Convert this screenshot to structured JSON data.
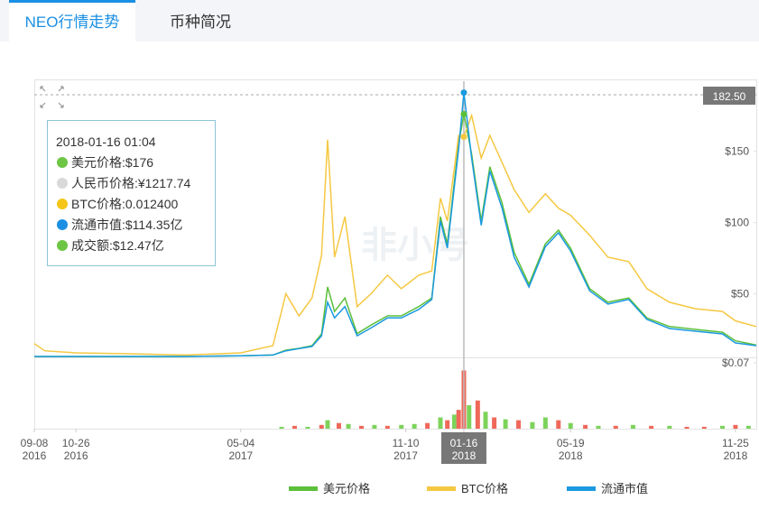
{
  "tabs": [
    "NEO行情走势",
    "币种简况"
  ],
  "chart_data": {
    "type": "line",
    "watermark": "非小号",
    "x": [
      "2016-09-08",
      "2016-09-20",
      "2016-10-26",
      "2016-12-15",
      "2017-03-01",
      "2017-05-04",
      "2017-06-10",
      "2017-06-25",
      "2017-07-10",
      "2017-07-25",
      "2017-08-05",
      "2017-08-12",
      "2017-08-20",
      "2017-09-01",
      "2017-09-15",
      "2017-10-01",
      "2017-10-20",
      "2017-11-05",
      "2017-11-25",
      "2017-12-10",
      "2017-12-20",
      "2017-12-28",
      "2018-01-10",
      "2018-01-16",
      "2018-01-25",
      "2018-02-05",
      "2018-02-15",
      "2018-03-01",
      "2018-03-15",
      "2018-04-01",
      "2018-04-20",
      "2018-05-05",
      "2018-05-19",
      "2018-06-10",
      "2018-07-01",
      "2018-07-25",
      "2018-08-15",
      "2018-09-10",
      "2018-10-10",
      "2018-11-10",
      "2018-11-25",
      "2018-12-19"
    ],
    "series": [
      {
        "name": "美元价格",
        "color": "#5cbf3a",
        "values": [
          6,
          6,
          6,
          6,
          6,
          6.5,
          7,
          10.4,
          11.7,
          13.6,
          21.8,
          54.7,
          37.6,
          47,
          22,
          28,
          34.5,
          34.5,
          41,
          47,
          104,
          85,
          155,
          176,
          148,
          101,
          139,
          113.6,
          79,
          56.6,
          85,
          94.6,
          82,
          53.5,
          44,
          47,
          33,
          27,
          25,
          23,
          17,
          14
        ]
      },
      {
        "name": "BTC价格",
        "color": "#f5c842",
        "values": [
          15,
          10,
          8.5,
          8,
          7,
          8.5,
          13.6,
          50,
          34.5,
          47,
          77,
          158,
          75.6,
          104,
          41,
          50,
          63,
          53.5,
          63,
          66,
          117,
          101,
          161,
          160,
          175,
          145,
          161,
          142,
          123,
          107,
          120,
          110,
          105,
          91,
          75.6,
          72.5,
          53.5,
          44,
          39.5,
          37.6,
          31,
          27
        ]
      },
      {
        "name": "流通市值",
        "color": "#1a9ae0",
        "values": [
          6,
          6,
          6,
          6,
          6,
          6.5,
          7,
          10,
          11.5,
          13,
          20.5,
          44,
          33,
          41,
          20.5,
          26,
          33,
          33,
          39,
          46,
          101,
          82,
          151.6,
          191,
          145,
          98,
          136,
          110,
          75.6,
          54.7,
          83,
          92.7,
          80,
          52,
          42.7,
          46,
          32,
          25.6,
          23.7,
          21.8,
          15.5,
          13.6
        ]
      }
    ],
    "xlim": [
      "2016-09-08",
      "2018-12-19"
    ],
    "xticks": [
      {
        "value": "2016-09-08",
        "label": [
          "09-08",
          "2016"
        ]
      },
      {
        "value": "2016-10-26",
        "label": [
          "10-26",
          "2016"
        ]
      },
      {
        "value": "2017-05-04",
        "label": [
          "05-04",
          "2017"
        ]
      },
      {
        "value": "2017-11-10",
        "label": [
          "11-10",
          "2017"
        ]
      },
      {
        "value": "2018-01-16",
        "label": [
          "01-16",
          "2018"
        ]
      },
      {
        "value": "2018-05-19",
        "label": [
          "05-19",
          "2018"
        ]
      },
      {
        "value": "2018-11-25",
        "label": [
          "11-25",
          "2018"
        ]
      }
    ],
    "ylim": [
      6,
      199
    ],
    "yticks": [
      {
        "value": 50,
        "label": "$50"
      },
      {
        "value": 100,
        "label": "$100"
      },
      {
        "value": 150,
        "label": "$150"
      }
    ],
    "grid": false,
    "crosshair": {
      "x": "2018-01-16",
      "value_label": "182.50"
    },
    "tooltip": {
      "time": "2018-01-16 01:04",
      "items": [
        {
          "label": "美元价格:$176",
          "color": "#6cc644"
        },
        {
          "label": "人民币价格:¥1217.74",
          "color": "#d9d9d9"
        },
        {
          "label": "BTC价格:0.012400",
          "color": "#f5c518"
        },
        {
          "label": "流通市值:$114.35亿",
          "color": "#1a8fe3"
        },
        {
          "label": "成交额:$12.47亿",
          "color": "#6cc644"
        }
      ]
    },
    "volume": {
      "x": [
        "2017-06-20",
        "2017-07-05",
        "2017-07-20",
        "2017-08-05",
        "2017-08-12",
        "2017-08-25",
        "2017-09-05",
        "2017-09-20",
        "2017-10-05",
        "2017-10-20",
        "2017-11-05",
        "2017-11-20",
        "2017-12-05",
        "2017-12-20",
        "2017-12-28",
        "2018-01-05",
        "2018-01-10",
        "2018-01-16",
        "2018-01-22",
        "2018-02-01",
        "2018-02-10",
        "2018-02-20",
        "2018-03-05",
        "2018-03-20",
        "2018-04-05",
        "2018-04-20",
        "2018-05-05",
        "2018-05-19",
        "2018-06-05",
        "2018-06-20",
        "2018-07-10",
        "2018-07-30",
        "2018-08-20",
        "2018-09-10",
        "2018-09-30",
        "2018-10-20",
        "2018-11-10",
        "2018-11-25",
        "2018-12-10"
      ],
      "values": [
        0.002,
        0.003,
        0.002,
        0.004,
        0.009,
        0.006,
        0.005,
        0.003,
        0.004,
        0.003,
        0.004,
        0.005,
        0.006,
        0.012,
        0.009,
        0.015,
        0.02,
        0.062,
        0.025,
        0.03,
        0.018,
        0.012,
        0.01,
        0.009,
        0.007,
        0.012,
        0.009,
        0.006,
        0.004,
        0.003,
        0.003,
        0.004,
        0.003,
        0.003,
        0.002,
        0.002,
        0.003,
        0.004,
        0.003
      ],
      "colors": [
        "#7dd35a",
        "#f0685a",
        "#7dd35a",
        "#f0685a",
        "#7dd35a",
        "#f0685a",
        "#7dd35a",
        "#f0685a",
        "#7dd35a",
        "#f0685a",
        "#7dd35a",
        "#7dd35a",
        "#f0685a",
        "#7dd35a",
        "#f0685a",
        "#7dd35a",
        "#f0685a",
        "#f0685a",
        "#7dd35a",
        "#f0685a",
        "#7dd35a",
        "#f0685a",
        "#7dd35a",
        "#f0685a",
        "#7dd35a",
        "#7dd35a",
        "#f0685a",
        "#7dd35a",
        "#f0685a",
        "#7dd35a",
        "#f0685a",
        "#7dd35a",
        "#f0685a",
        "#7dd35a",
        "#f0685a",
        "#f0685a",
        "#7dd35a",
        "#f0685a",
        "#7dd35a"
      ],
      "ylim": [
        0,
        0.074
      ],
      "yticks": [
        {
          "value": 0.07,
          "label": "$0.07"
        }
      ]
    }
  }
}
